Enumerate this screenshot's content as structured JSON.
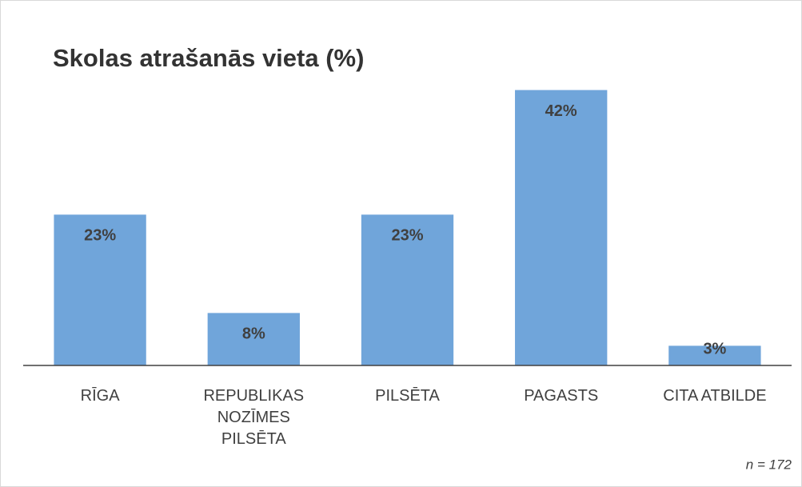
{
  "chart_data": {
    "type": "bar",
    "title": "Skolas atrašanās vieta (%)",
    "categories": [
      "RĪGA",
      "REPUBLIKAS NOZĪMES PILSĒTA",
      "PILSĒTA",
      "PAGASTS",
      "CITA ATBILDE"
    ],
    "values": [
      23,
      8,
      23,
      42,
      3
    ],
    "value_labels": [
      "23%",
      "8%",
      "23%",
      "42%",
      "3%"
    ],
    "color": "#70a5da",
    "ylim": [
      0,
      45
    ],
    "annotation": "n = 172"
  }
}
